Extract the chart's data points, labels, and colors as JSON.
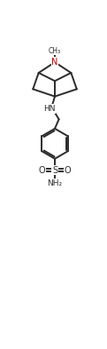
{
  "bg_color": "#ffffff",
  "bond_color": "#2a2a2a",
  "atom_colors": {
    "N": "#c00000",
    "O": "#2a2a2a",
    "S": "#2a2a2a",
    "C": "#2a2a2a"
  },
  "line_width": 1.4,
  "font_size": 6.5,
  "figsize": [
    1.21,
    3.93
  ],
  "dpi": 100,
  "xlim": [
    0,
    10
  ],
  "ylim": [
    0,
    33
  ]
}
